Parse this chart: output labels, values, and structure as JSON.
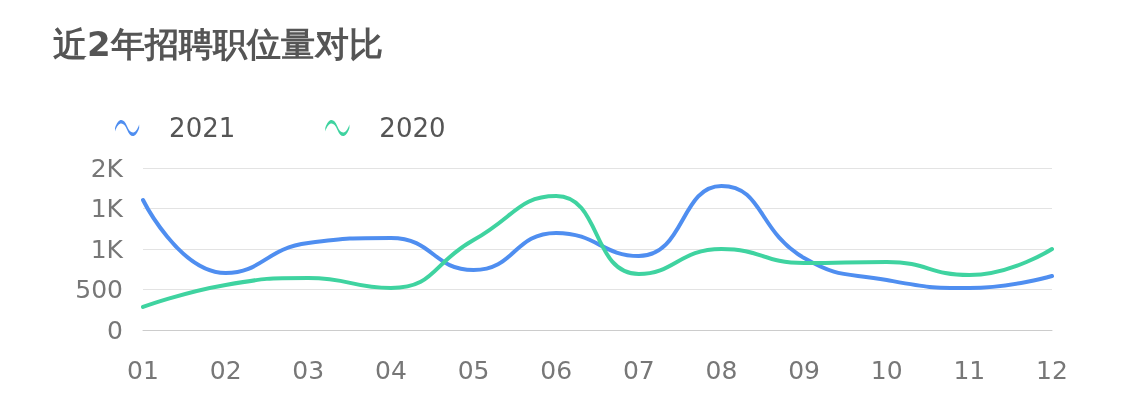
{
  "chart_data": {
    "type": "line",
    "title": "近2年招聘职位量对比",
    "categories": [
      "01",
      "02",
      "03",
      "04",
      "05",
      "06",
      "07",
      "08",
      "09",
      "10",
      "11",
      "12"
    ],
    "series": [
      {
        "name": "2021",
        "color": "#4f8ef0",
        "values": [
          1605,
          704,
          1074,
          1136,
          741,
          1198,
          914,
          1778,
          889,
          617,
          519,
          667
        ]
      },
      {
        "name": "2020",
        "color": "#3fd3a0",
        "values": [
          284,
          556,
          642,
          519,
          1111,
          1654,
          691,
          1000,
          827,
          840,
          679,
          1000
        ]
      }
    ],
    "ylim": [
      0,
      2000
    ],
    "yticks": [
      0,
      500,
      {
        "value": 1000,
        "label": "1K"
      },
      {
        "value": 1500,
        "label": "1K"
      },
      {
        "value": 2000,
        "label": "2K"
      }
    ],
    "grid": "y",
    "legend": "top left",
    "marker": "none",
    "line_style": "solid"
  }
}
